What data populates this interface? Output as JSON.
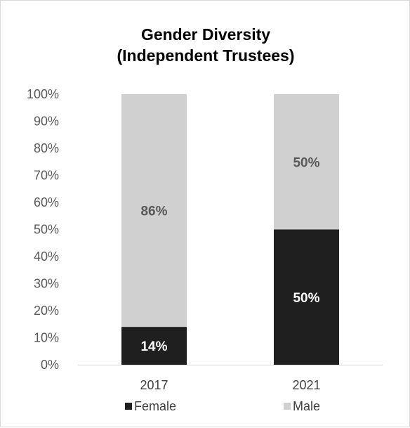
{
  "chart_data": {
    "type": "bar",
    "stacked": true,
    "title": "Gender Diversity",
    "subtitle": "(Independent Trustees)",
    "categories": [
      "2017",
      "2021"
    ],
    "series": [
      {
        "name": "Female",
        "values": [
          14,
          50
        ],
        "labels": [
          "14%",
          "50%"
        ],
        "color": "#1f1f1f",
        "label_color": "#ffffff"
      },
      {
        "name": "Male",
        "values": [
          86,
          50
        ],
        "labels": [
          "86%",
          "50%"
        ],
        "color": "#d0d0d0",
        "label_color": "#595959"
      }
    ],
    "ylim": [
      0,
      100
    ],
    "y_ticks": [
      "0%",
      "10%",
      "20%",
      "30%",
      "40%",
      "50%",
      "60%",
      "70%",
      "80%",
      "90%",
      "100%"
    ],
    "grid": false,
    "legend_position": "bottom"
  }
}
